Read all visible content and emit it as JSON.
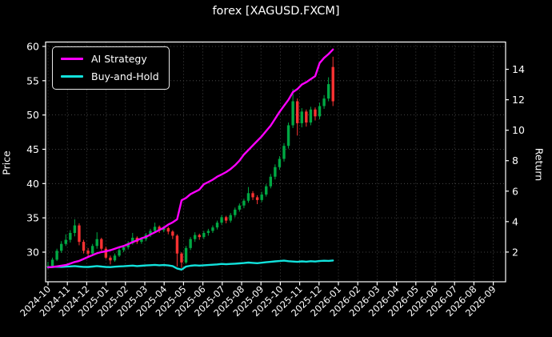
{
  "title": "forex [XAGUSD.FXCM]",
  "legend": {
    "items": [
      {
        "label": "AI Strategy",
        "color": "#ff00ff"
      },
      {
        "label": "Buy-and-Hold",
        "color": "#12e2dc"
      }
    ]
  },
  "colors": {
    "background": "#000000",
    "text": "#ffffff",
    "grid": "#555555",
    "spine": "#ffffff",
    "candle_up": "#00a843",
    "candle_down": "#f93232",
    "strategy_line": "#ff00ff",
    "buyhold_line": "#12e2dc"
  },
  "chart_data": {
    "type": "candlestick+line",
    "title": "forex [XAGUSD.FXCM]",
    "ylabel_left": "Price",
    "ylabel_right": "Return",
    "grid": "dotted",
    "legend_position": "upper-left",
    "x_tick_labels": [
      "2024-10",
      "2024-11",
      "2024-12",
      "2025-01",
      "2025-02",
      "2025-03",
      "2025-04",
      "2025-05",
      "2025-06",
      "2025-07",
      "2025-08",
      "2025-09",
      "2025-10",
      "2025-11",
      "2025-12",
      "2026-01",
      "2026-02",
      "2026-03",
      "2026-04",
      "2026-05",
      "2026-06",
      "2026-07",
      "2026-08",
      "2026-09"
    ],
    "yticks_left": [
      30,
      35,
      40,
      45,
      50,
      55,
      60
    ],
    "yticks_right": [
      2,
      4,
      6,
      8,
      10,
      12,
      14
    ],
    "ylim_left": [
      25.68,
      60.64
    ],
    "ylim_right": [
      0.05,
      15.79
    ],
    "x_step_months": 0.23,
    "candles_note": "weekly OHLC, first bar 2024-10, last bar late 2025-12",
    "ohlc": [
      [
        27.8,
        28.6,
        27.5,
        28.0
      ],
      [
        28.0,
        29.2,
        27.9,
        28.9
      ],
      [
        28.9,
        30.5,
        28.7,
        30.2
      ],
      [
        30.2,
        31.6,
        29.9,
        31.2
      ],
      [
        31.2,
        32.6,
        30.9,
        31.8
      ],
      [
        31.8,
        33.2,
        31.4,
        32.8
      ],
      [
        32.8,
        34.8,
        32.3,
        33.9
      ],
      [
        33.9,
        34.2,
        31.0,
        31.5
      ],
      [
        31.5,
        31.8,
        29.8,
        30.2
      ],
      [
        30.2,
        30.6,
        29.3,
        29.8
      ],
      [
        29.8,
        31.2,
        29.6,
        30.9
      ],
      [
        30.9,
        32.9,
        30.5,
        31.9
      ],
      [
        31.9,
        32.1,
        30.2,
        30.5
      ],
      [
        30.5,
        30.8,
        29.0,
        29.2
      ],
      [
        29.2,
        29.5,
        28.2,
        28.8
      ],
      [
        28.8,
        29.8,
        28.6,
        29.5
      ],
      [
        29.5,
        30.6,
        29.3,
        30.3
      ],
      [
        30.3,
        31.0,
        30.0,
        30.7
      ],
      [
        30.7,
        31.6,
        30.4,
        31.3
      ],
      [
        31.3,
        32.8,
        31.1,
        32.1
      ],
      [
        32.1,
        32.3,
        31.2,
        31.5
      ],
      [
        31.5,
        32.2,
        31.2,
        31.9
      ],
      [
        31.9,
        32.8,
        31.6,
        32.5
      ],
      [
        32.5,
        33.4,
        32.2,
        33.1
      ],
      [
        33.1,
        34.3,
        32.9,
        33.7
      ],
      [
        33.7,
        33.9,
        32.8,
        33.2
      ],
      [
        33.2,
        33.8,
        32.9,
        33.5
      ],
      [
        33.5,
        33.7,
        32.6,
        33.0
      ],
      [
        33.0,
        33.2,
        31.9,
        32.4
      ],
      [
        32.4,
        32.6,
        27.9,
        29.8
      ],
      [
        29.8,
        30.0,
        27.7,
        28.5
      ],
      [
        28.5,
        30.9,
        28.3,
        30.6
      ],
      [
        30.6,
        32.2,
        30.3,
        31.9
      ],
      [
        31.9,
        32.9,
        31.5,
        32.5
      ],
      [
        32.5,
        32.7,
        31.8,
        32.2
      ],
      [
        32.2,
        33.1,
        31.9,
        32.8
      ],
      [
        32.8,
        33.4,
        32.4,
        33.1
      ],
      [
        33.1,
        33.9,
        32.8,
        33.6
      ],
      [
        33.6,
        34.6,
        33.3,
        34.3
      ],
      [
        34.3,
        35.4,
        34.0,
        35.1
      ],
      [
        35.1,
        35.3,
        34.2,
        34.6
      ],
      [
        34.6,
        35.7,
        34.3,
        35.4
      ],
      [
        35.4,
        36.5,
        35.1,
        36.2
      ],
      [
        36.2,
        37.1,
        35.9,
        36.8
      ],
      [
        36.8,
        37.8,
        36.4,
        37.5
      ],
      [
        37.5,
        39.5,
        37.2,
        38.6
      ],
      [
        38.6,
        38.9,
        37.6,
        38.0
      ],
      [
        38.0,
        38.3,
        37.0,
        37.6
      ],
      [
        37.6,
        38.8,
        37.3,
        38.4
      ],
      [
        38.4,
        39.9,
        38.1,
        39.6
      ],
      [
        39.6,
        41.4,
        39.3,
        41.0
      ],
      [
        41.0,
        42.8,
        40.6,
        42.4
      ],
      [
        42.4,
        44.0,
        42.0,
        43.6
      ],
      [
        43.6,
        45.9,
        43.2,
        45.5
      ],
      [
        45.5,
        48.9,
        45.1,
        48.5
      ],
      [
        48.5,
        53.8,
        48.1,
        52.0
      ],
      [
        52.0,
        52.4,
        47.0,
        48.8
      ],
      [
        48.8,
        51.0,
        48.2,
        50.5
      ],
      [
        50.5,
        50.8,
        48.3,
        48.9
      ],
      [
        48.9,
        51.2,
        48.5,
        50.8
      ],
      [
        50.8,
        51.1,
        49.2,
        49.8
      ],
      [
        49.8,
        51.8,
        49.4,
        51.3
      ],
      [
        51.3,
        52.9,
        50.9,
        52.4
      ],
      [
        52.4,
        55.5,
        52.0,
        54.5
      ],
      [
        57.0,
        58.5,
        51.3,
        52.0
      ]
    ],
    "series": [
      {
        "name": "AI Strategy",
        "axis": "right",
        "color": "#ff00ff",
        "values": [
          1.0,
          1.02,
          1.06,
          1.1,
          1.15,
          1.25,
          1.35,
          1.42,
          1.55,
          1.68,
          1.8,
          1.92,
          2.0,
          2.05,
          2.12,
          2.22,
          2.32,
          2.4,
          2.52,
          2.65,
          2.78,
          2.9,
          3.0,
          3.15,
          3.3,
          3.45,
          3.6,
          3.8,
          3.95,
          4.15,
          5.4,
          5.55,
          5.8,
          5.95,
          6.1,
          6.45,
          6.6,
          6.75,
          6.95,
          7.1,
          7.25,
          7.45,
          7.7,
          8.0,
          8.4,
          8.7,
          9.0,
          9.3,
          9.6,
          9.95,
          10.3,
          10.75,
          11.2,
          11.6,
          12.0,
          12.5,
          12.7,
          13.0,
          13.15,
          13.35,
          13.55,
          14.4,
          14.75,
          15.0,
          15.3
        ]
      },
      {
        "name": "Buy-and-Hold",
        "axis": "right",
        "color": "#12e2dc",
        "values": [
          1.0,
          1.02,
          1.04,
          1.03,
          1.05,
          1.06,
          1.08,
          1.05,
          1.03,
          1.02,
          1.05,
          1.08,
          1.05,
          1.02,
          1.01,
          1.04,
          1.06,
          1.07,
          1.09,
          1.11,
          1.08,
          1.1,
          1.12,
          1.14,
          1.16,
          1.13,
          1.15,
          1.12,
          1.08,
          0.92,
          0.85,
          1.05,
          1.1,
          1.13,
          1.11,
          1.13,
          1.15,
          1.17,
          1.19,
          1.22,
          1.2,
          1.22,
          1.24,
          1.26,
          1.28,
          1.31,
          1.29,
          1.27,
          1.3,
          1.33,
          1.36,
          1.39,
          1.41,
          1.44,
          1.4,
          1.38,
          1.36,
          1.39,
          1.37,
          1.4,
          1.38,
          1.41,
          1.43,
          1.42,
          1.45
        ]
      }
    ]
  }
}
